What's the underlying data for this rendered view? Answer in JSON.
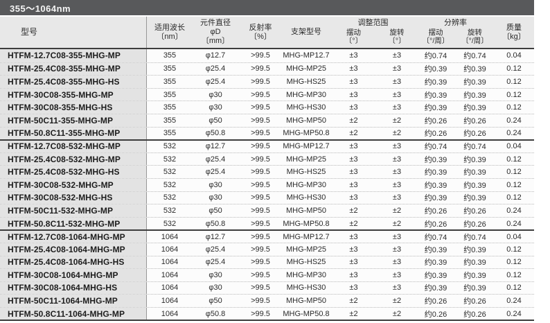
{
  "title": "355～1064nm",
  "colors": {
    "title_bar_bg": "#58595b",
    "header_bg": "#e8e8e8",
    "model_column_bg": "#e3e3e3",
    "solid_rule": "#3c3c3c",
    "dotted_rule": "#b9b9b9"
  },
  "table": {
    "header": {
      "model": "型号",
      "wavelength": "适用波长\n〔nm〕",
      "diameter": "元件直径\nφD\n〔mm〕",
      "reflectivity": "反射率\n〔%〕",
      "mount": "支架型号",
      "adjust_group": "调整范围",
      "resolution_group": "分辨率",
      "swing_range": "摆动\n〔°〕",
      "rotation_range": "旋转\n〔°〕",
      "swing_resolution": "摆动\n〔°/周〕",
      "rotation_resolution": "旋转\n〔°/周〕",
      "mass": "质量\n〔kg〕"
    },
    "rows": [
      {
        "model": "HTFM-12.7C08-355-MHG-MP",
        "wavelength": "355",
        "diameter": "φ12.7",
        "reflectivity": ">99.5",
        "mount": "MHG-MP12.7",
        "swing_range": "±3",
        "rotation_range": "±3",
        "swing_resolution": "约0.74",
        "rotation_resolution": "约0.74",
        "mass": "0.04"
      },
      {
        "model": "HTFM-25.4C08-355-MHG-MP",
        "wavelength": "355",
        "diameter": "φ25.4",
        "reflectivity": ">99.5",
        "mount": "MHG-MP25",
        "swing_range": "±3",
        "rotation_range": "±3",
        "swing_resolution": "约0.39",
        "rotation_resolution": "约0.39",
        "mass": "0.12"
      },
      {
        "model": "HTFM-25.4C08-355-MHG-HS",
        "wavelength": "355",
        "diameter": "φ25.4",
        "reflectivity": ">99.5",
        "mount": "MHG-HS25",
        "swing_range": "±3",
        "rotation_range": "±3",
        "swing_resolution": "约0.39",
        "rotation_resolution": "约0.39",
        "mass": "0.12"
      },
      {
        "model": "HTFM-30C08-355-MHG-MP",
        "wavelength": "355",
        "diameter": "φ30",
        "reflectivity": ">99.5",
        "mount": "MHG-MP30",
        "swing_range": "±3",
        "rotation_range": "±3",
        "swing_resolution": "约0.39",
        "rotation_resolution": "约0.39",
        "mass": "0.12"
      },
      {
        "model": "HTFM-30C08-355-MHG-HS",
        "wavelength": "355",
        "diameter": "φ30",
        "reflectivity": ">99.5",
        "mount": "MHG-HS30",
        "swing_range": "±3",
        "rotation_range": "±3",
        "swing_resolution": "约0.39",
        "rotation_resolution": "约0.39",
        "mass": "0.12"
      },
      {
        "model": "HTFM-50C11-355-MHG-MP",
        "wavelength": "355",
        "diameter": "φ50",
        "reflectivity": ">99.5",
        "mount": "MHG-MP50",
        "swing_range": "±2",
        "rotation_range": "±2",
        "swing_resolution": "约0.26",
        "rotation_resolution": "约0.26",
        "mass": "0.24"
      },
      {
        "model": "HTFM-50.8C11-355-MHG-MP",
        "wavelength": "355",
        "diameter": "φ50.8",
        "reflectivity": ">99.5",
        "mount": "MHG-MP50.8",
        "swing_range": "±2",
        "rotation_range": "±2",
        "swing_resolution": "约0.26",
        "rotation_resolution": "约0.26",
        "mass": "0.24"
      },
      {
        "model": "HTFM-12.7C08-532-MHG-MP",
        "wavelength": "532",
        "diameter": "φ12.7",
        "reflectivity": ">99.5",
        "mount": "MHG-MP12.7",
        "swing_range": "±3",
        "rotation_range": "±3",
        "swing_resolution": "约0.74",
        "rotation_resolution": "约0.74",
        "mass": "0.04"
      },
      {
        "model": "HTFM-25.4C08-532-MHG-MP",
        "wavelength": "532",
        "diameter": "φ25.4",
        "reflectivity": ">99.5",
        "mount": "MHG-MP25",
        "swing_range": "±3",
        "rotation_range": "±3",
        "swing_resolution": "约0.39",
        "rotation_resolution": "约0.39",
        "mass": "0.12"
      },
      {
        "model": "HTFM-25.4C08-532-MHG-HS",
        "wavelength": "532",
        "diameter": "φ25.4",
        "reflectivity": ">99.5",
        "mount": "MHG-HS25",
        "swing_range": "±3",
        "rotation_range": "±3",
        "swing_resolution": "约0.39",
        "rotation_resolution": "约0.39",
        "mass": "0.12"
      },
      {
        "model": "HTFM-30C08-532-MHG-MP",
        "wavelength": "532",
        "diameter": "φ30",
        "reflectivity": ">99.5",
        "mount": "MHG-MP30",
        "swing_range": "±3",
        "rotation_range": "±3",
        "swing_resolution": "约0.39",
        "rotation_resolution": "约0.39",
        "mass": "0.12"
      },
      {
        "model": "HTFM-30C08-532-MHG-HS",
        "wavelength": "532",
        "diameter": "φ30",
        "reflectivity": ">99.5",
        "mount": "MHG-HS30",
        "swing_range": "±3",
        "rotation_range": "±3",
        "swing_resolution": "约0.39",
        "rotation_resolution": "约0.39",
        "mass": "0.12"
      },
      {
        "model": "HTFM-50C11-532-MHG-MP",
        "wavelength": "532",
        "diameter": "φ50",
        "reflectivity": ">99.5",
        "mount": "MHG-MP50",
        "swing_range": "±2",
        "rotation_range": "±2",
        "swing_resolution": "约0.26",
        "rotation_resolution": "约0.26",
        "mass": "0.24"
      },
      {
        "model": "HTFM-50.8C11-532-MHG-MP",
        "wavelength": "532",
        "diameter": "φ50.8",
        "reflectivity": ">99.5",
        "mount": "MHG-MP50.8",
        "swing_range": "±2",
        "rotation_range": "±2",
        "swing_resolution": "约0.26",
        "rotation_resolution": "约0.26",
        "mass": "0.24"
      },
      {
        "model": "HTFM-12.7C08-1064-MHG-MP",
        "wavelength": "1064",
        "diameter": "φ12.7",
        "reflectivity": ">99.5",
        "mount": "MHG-MP12.7",
        "swing_range": "±3",
        "rotation_range": "±3",
        "swing_resolution": "约0.74",
        "rotation_resolution": "约0.74",
        "mass": "0.04"
      },
      {
        "model": "HTFM-25.4C08-1064-MHG-MP",
        "wavelength": "1064",
        "diameter": "φ25.4",
        "reflectivity": ">99.5",
        "mount": "MHG-MP25",
        "swing_range": "±3",
        "rotation_range": "±3",
        "swing_resolution": "约0.39",
        "rotation_resolution": "约0.39",
        "mass": "0.12"
      },
      {
        "model": "HTFM-25.4C08-1064-MHG-HS",
        "wavelength": "1064",
        "diameter": "φ25.4",
        "reflectivity": ">99.5",
        "mount": "MHG-HS25",
        "swing_range": "±3",
        "rotation_range": "±3",
        "swing_resolution": "约0.39",
        "rotation_resolution": "约0.39",
        "mass": "0.12"
      },
      {
        "model": "HTFM-30C08-1064-MHG-MP",
        "wavelength": "1064",
        "diameter": "φ30",
        "reflectivity": ">99.5",
        "mount": "MHG-MP30",
        "swing_range": "±3",
        "rotation_range": "±3",
        "swing_resolution": "约0.39",
        "rotation_resolution": "约0.39",
        "mass": "0.12"
      },
      {
        "model": "HTFM-30C08-1064-MHG-HS",
        "wavelength": "1064",
        "diameter": "φ30",
        "reflectivity": ">99.5",
        "mount": "MHG-HS30",
        "swing_range": "±3",
        "rotation_range": "±3",
        "swing_resolution": "约0.39",
        "rotation_resolution": "约0.39",
        "mass": "0.12"
      },
      {
        "model": "HTFM-50C11-1064-MHG-MP",
        "wavelength": "1064",
        "diameter": "φ50",
        "reflectivity": ">99.5",
        "mount": "MHG-MP50",
        "swing_range": "±2",
        "rotation_range": "±2",
        "swing_resolution": "约0.26",
        "rotation_resolution": "约0.26",
        "mass": "0.24"
      },
      {
        "model": "HTFM-50.8C11-1064-MHG-MP",
        "wavelength": "1064",
        "diameter": "φ50.8",
        "reflectivity": ">99.5",
        "mount": "MHG-MP50.8",
        "swing_range": "±2",
        "rotation_range": "±2",
        "swing_resolution": "约0.26",
        "rotation_resolution": "约0.26",
        "mass": "0.24"
      }
    ]
  }
}
